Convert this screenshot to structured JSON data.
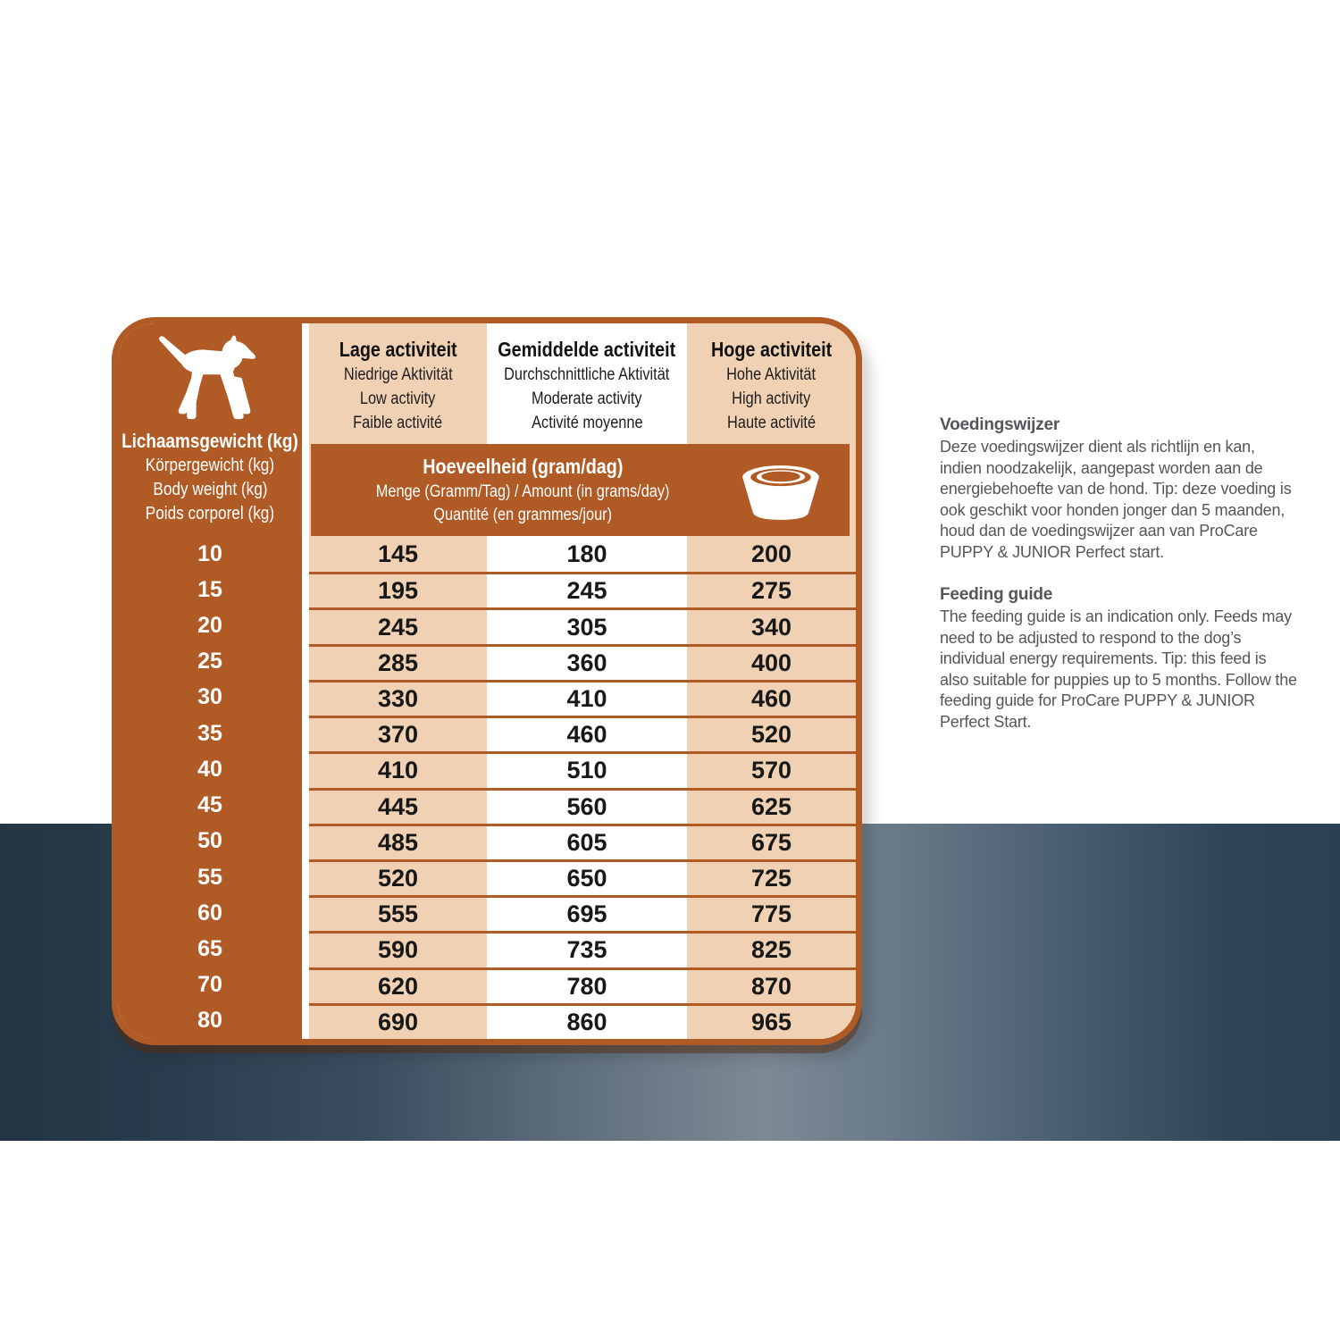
{
  "table": {
    "weight_header": {
      "title": "Lichaamsgewicht (kg)",
      "subs": [
        "Körpergewicht (kg)",
        "Body weight (kg)",
        "Poids corporel (kg)"
      ]
    },
    "columns": [
      {
        "title": "Lage activiteit",
        "subs": [
          "Niedrige Aktivität",
          "Low activity",
          "Faible activité"
        ]
      },
      {
        "title": "Gemiddelde activiteit",
        "subs": [
          "Durchschnittliche Aktivität",
          "Moderate activity",
          "Activité moyenne"
        ]
      },
      {
        "title": "Hoge activiteit",
        "subs": [
          "Hohe Aktivität",
          "High activity",
          "Haute activité"
        ]
      }
    ],
    "amount_header": {
      "title": "Hoeveelheid (gram/dag)",
      "subs": [
        "Menge (Gramm/Tag) / Amount (in grams/day)",
        "Quantité (en grammes/jour)"
      ]
    },
    "rows": [
      {
        "weight": "10",
        "low": "145",
        "moderate": "180",
        "high": "200"
      },
      {
        "weight": "15",
        "low": "195",
        "moderate": "245",
        "high": "275"
      },
      {
        "weight": "20",
        "low": "245",
        "moderate": "305",
        "high": "340"
      },
      {
        "weight": "25",
        "low": "285",
        "moderate": "360",
        "high": "400"
      },
      {
        "weight": "30",
        "low": "330",
        "moderate": "410",
        "high": "460"
      },
      {
        "weight": "35",
        "low": "370",
        "moderate": "460",
        "high": "520"
      },
      {
        "weight": "40",
        "low": "410",
        "moderate": "510",
        "high": "570"
      },
      {
        "weight": "45",
        "low": "445",
        "moderate": "560",
        "high": "625"
      },
      {
        "weight": "50",
        "low": "485",
        "moderate": "605",
        "high": "675"
      },
      {
        "weight": "55",
        "low": "520",
        "moderate": "650",
        "high": "725"
      },
      {
        "weight": "60",
        "low": "555",
        "moderate": "695",
        "high": "775"
      },
      {
        "weight": "65",
        "low": "590",
        "moderate": "735",
        "high": "825"
      },
      {
        "weight": "70",
        "low": "620",
        "moderate": "780",
        "high": "870"
      },
      {
        "weight": "80",
        "low": "690",
        "moderate": "860",
        "high": "965"
      }
    ]
  },
  "side_text": {
    "nl": {
      "heading": "Voedingswijzer",
      "body": "Deze voedingswijzer dient als richtlijn en kan, indien noodzakelijk, aangepast worden aan de energiebehoefte van de hond. Tip: deze voeding is ook geschikt voor honden jonger dan 5 maanden, houd dan de voedingswijzer aan van ProCare PUPPY & JUNIOR Perfect start."
    },
    "en": {
      "heading": "Feeding guide",
      "body": "The feeding guide is an indication only. Feeds may need to be adjusted to respond to the dog’s individual energy requirements. Tip: this feed is also suitable for puppies up to 5 months. Follow the feeding guide for ProCare PUPPY & JUNIOR Perfect Start."
    }
  },
  "icons": {
    "dog": "dog-silhouette",
    "bowl": "dog-bowl"
  },
  "colors": {
    "brown": "#b05a25",
    "beige": "#f0d1b4",
    "value_text": "#181818",
    "side_text_gray": "#55565a",
    "band_dark": "#233544",
    "band_light": "#7d8995"
  }
}
